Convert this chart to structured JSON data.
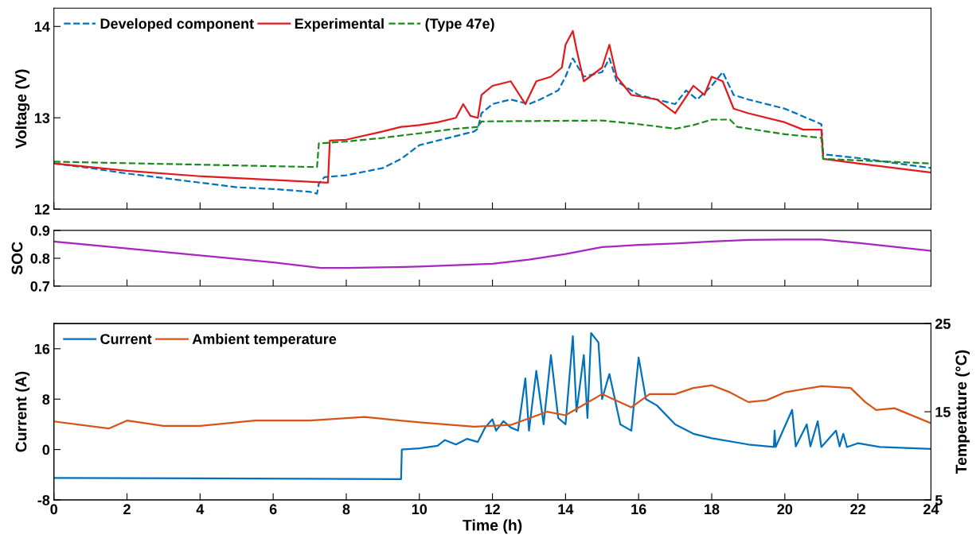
{
  "chart_data": [
    {
      "type": "line",
      "ylabel": "Voltage (V)",
      "xlim": [
        0,
        24
      ],
      "xticks": [
        0,
        2,
        4,
        6,
        8,
        10,
        12,
        14,
        16,
        18,
        20,
        22,
        24
      ],
      "ylim": [
        12,
        14.2
      ],
      "yticks": [
        12,
        13,
        14
      ],
      "tick_labels": "y",
      "grid": false,
      "legend": "top left",
      "marker": "none",
      "series": [
        {
          "name": "Developed component",
          "color": "#0072bd",
          "line_style": "dashed",
          "x": [
            0,
            1,
            2,
            3,
            4,
            5,
            6,
            7,
            7.2,
            7.25,
            7.4,
            8,
            9,
            9.5,
            10,
            10.5,
            11,
            11.5,
            11.6,
            11.7,
            12,
            12.5,
            13,
            13.3,
            13.8,
            14,
            14.2,
            14.5,
            15,
            15.2,
            15.4,
            15.8,
            16,
            16.5,
            17,
            17.3,
            17.6,
            18,
            18.3,
            18.6,
            19,
            20,
            21,
            21.05,
            22,
            24
          ],
          "values": [
            12.5,
            12.45,
            12.39,
            12.34,
            12.29,
            12.24,
            12.22,
            12.19,
            12.17,
            12.28,
            12.35,
            12.37,
            12.45,
            12.55,
            12.7,
            12.75,
            12.8,
            12.85,
            12.88,
            13.05,
            13.15,
            13.2,
            13.15,
            13.2,
            13.3,
            13.45,
            13.65,
            13.45,
            13.5,
            13.65,
            13.4,
            13.3,
            13.25,
            13.2,
            13.15,
            13.3,
            13.2,
            13.35,
            13.5,
            13.25,
            13.2,
            13.1,
            12.93,
            12.6,
            12.56,
            12.45
          ]
        },
        {
          "name": "Experimental",
          "color": "#e31a1c",
          "line_style": "solid",
          "x": [
            0,
            2,
            4,
            6,
            7.5,
            7.55,
            8,
            9,
            9.5,
            10,
            10.5,
            11,
            11.2,
            11.4,
            11.6,
            11.7,
            12,
            12.5,
            12.9,
            13.2,
            13.6,
            13.9,
            14,
            14.2,
            14.3,
            14.5,
            15,
            15.2,
            15.4,
            15.8,
            16.5,
            17,
            17.5,
            17.8,
            18,
            18.3,
            18.6,
            19,
            20,
            20.5,
            21,
            21.05,
            22,
            24
          ],
          "values": [
            12.5,
            12.42,
            12.36,
            12.32,
            12.29,
            12.75,
            12.76,
            12.85,
            12.9,
            12.92,
            12.95,
            13.0,
            13.15,
            13.02,
            13.0,
            13.25,
            13.35,
            13.4,
            13.15,
            13.4,
            13.45,
            13.55,
            13.8,
            13.95,
            13.75,
            13.4,
            13.55,
            13.8,
            13.45,
            13.25,
            13.2,
            13.05,
            13.35,
            13.25,
            13.45,
            13.4,
            13.1,
            13.05,
            12.95,
            12.87,
            12.87,
            12.55,
            12.5,
            12.4
          ]
        },
        {
          "name": "(Type 47e)",
          "color": "#1a8a1a",
          "line_style": "dashed",
          "x": [
            0,
            7.2,
            7.25,
            8,
            9,
            10,
            11,
            11.6,
            11.7,
            15,
            16,
            17,
            17.5,
            18,
            18.5,
            18.7,
            20,
            21,
            21.05,
            24
          ],
          "values": [
            12.52,
            12.46,
            12.72,
            12.74,
            12.78,
            12.83,
            12.88,
            12.9,
            12.96,
            12.97,
            12.93,
            12.88,
            12.92,
            12.98,
            12.98,
            12.9,
            12.82,
            12.78,
            12.55,
            12.5
          ]
        }
      ]
    },
    {
      "type": "line",
      "ylabel": "SOC",
      "xlim": [
        0,
        24
      ],
      "xticks": [
        0,
        2,
        4,
        6,
        8,
        10,
        12,
        14,
        16,
        18,
        20,
        22,
        24
      ],
      "ylim": [
        0.7,
        0.9
      ],
      "yticks": [
        0.7,
        0.8,
        0.9
      ],
      "tick_labels": "y",
      "grid": false,
      "marker": "none",
      "series": [
        {
          "color": "#a825c0",
          "line_style": "solid",
          "x": [
            0,
            2,
            4,
            6,
            7.3,
            8,
            10,
            12,
            13,
            14,
            15,
            16,
            17,
            18,
            19,
            20,
            21,
            22,
            24
          ],
          "values": [
            0.86,
            0.835,
            0.81,
            0.785,
            0.765,
            0.765,
            0.77,
            0.78,
            0.795,
            0.815,
            0.84,
            0.848,
            0.853,
            0.86,
            0.866,
            0.867,
            0.867,
            0.855,
            0.827
          ]
        }
      ]
    },
    {
      "type": "line",
      "xlabel": "Time (h)",
      "ylabel": "Current (A)",
      "y2label": "Temperature (°C)",
      "xlim": [
        0,
        24
      ],
      "xticks": [
        0,
        2,
        4,
        6,
        8,
        10,
        12,
        14,
        16,
        18,
        20,
        22,
        24
      ],
      "ylim": [
        -8,
        20
      ],
      "yticks": [
        -8,
        0,
        8,
        16
      ],
      "y2lim": [
        5,
        25
      ],
      "y2ticks": [
        5,
        15,
        25
      ],
      "grid": false,
      "legend": "top left",
      "marker": "none",
      "series": [
        {
          "name": "Current",
          "color": "#0072bd",
          "line_style": "solid",
          "x": [
            0,
            9.5,
            9.52,
            10,
            10.5,
            10.7,
            11,
            11.3,
            11.6,
            11.8,
            12,
            12.1,
            12.3,
            12.5,
            12.7,
            12.9,
            13,
            13.2,
            13.4,
            13.6,
            13.8,
            14,
            14.2,
            14.3,
            14.5,
            14.6,
            14.7,
            14.9,
            15,
            15.2,
            15.5,
            15.8,
            16,
            16.2,
            16.5,
            17,
            17.5,
            18,
            19,
            19.7,
            19.72,
            19.75,
            20.2,
            20.3,
            20.6,
            20.7,
            20.9,
            21,
            21.4,
            21.5,
            21.6,
            21.7,
            22,
            22.6,
            24
          ],
          "values": [
            -4.5,
            -4.7,
            0,
            0.2,
            0.6,
            1.5,
            0.8,
            1.7,
            1.2,
            3.5,
            4.8,
            3,
            4.5,
            3.5,
            3,
            11.3,
            3,
            12.5,
            4,
            15,
            5,
            4,
            18,
            6,
            15,
            5,
            18.5,
            17,
            8,
            12,
            4,
            3,
            14.6,
            8,
            7,
            4,
            2.5,
            1.8,
            0.8,
            0.4,
            3,
            0.4,
            6.3,
            0.5,
            4,
            0.5,
            4.5,
            0.4,
            3,
            0.5,
            2.5,
            0.4,
            1,
            0.4,
            0.1
          ]
        },
        {
          "name": "Ambient temperature",
          "color": "#d95319",
          "line_style": "solid",
          "axis": "y2",
          "x": [
            0,
            1.5,
            2,
            3,
            4,
            5.5,
            7,
            8.5,
            10,
            11.5,
            12.5,
            13.5,
            14,
            15,
            15.8,
            16.3,
            17,
            17.5,
            18,
            18.5,
            19,
            19.5,
            20,
            21,
            21.8,
            22.2,
            22.5,
            23,
            24
          ],
          "values": [
            13.9,
            13.1,
            14.0,
            13.4,
            13.4,
            14.0,
            14.0,
            14.4,
            13.8,
            13.3,
            13.5,
            15.0,
            14.6,
            17.0,
            15.5,
            17.0,
            17.0,
            17.7,
            18.0,
            17.2,
            16.1,
            16.3,
            17.2,
            17.9,
            17.7,
            16.1,
            15.2,
            15.4,
            13.7
          ]
        }
      ]
    }
  ]
}
